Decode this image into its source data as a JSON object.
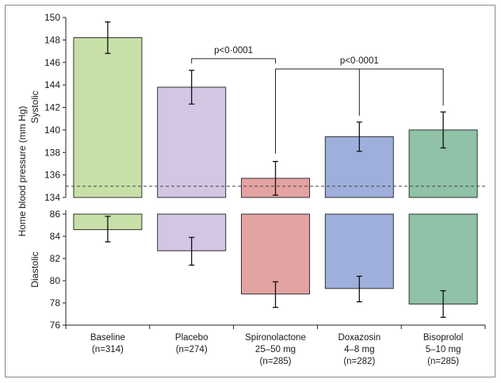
{
  "chart_data": {
    "type": "bar",
    "ylabel": "Home blood pressure (mm Hg)",
    "systolic_label": "Systolic",
    "diastolic_label": "Diastolic",
    "systolic_ylim": [
      134,
      150
    ],
    "diastolic_ylim": [
      76,
      86
    ],
    "systolic_ticks": [
      134,
      136,
      138,
      140,
      142,
      144,
      146,
      148,
      150
    ],
    "diastolic_ticks": [
      76,
      78,
      80,
      82,
      84,
      86
    ],
    "reference_line_systolic": 135,
    "categories": [
      {
        "name": "Baseline",
        "lines": [
          "Baseline",
          "(n=314)"
        ],
        "color": "#c7e0a8"
      },
      {
        "name": "Placebo",
        "lines": [
          "Placebo",
          "(n=274)"
        ],
        "color": "#d3c6e3"
      },
      {
        "name": "Spironolactone",
        "lines": [
          "Spironolactone",
          "25–50 mg",
          "(n=285)"
        ],
        "color": "#e3a3a3"
      },
      {
        "name": "Doxazosin",
        "lines": [
          "Doxazosin",
          "4–8 mg",
          "(n=282)"
        ],
        "color": "#9eafdb"
      },
      {
        "name": "Bisoprolol",
        "lines": [
          "Bisoprolol",
          "5–10 mg",
          "(n=285)"
        ],
        "color": "#8fc2a6"
      }
    ],
    "series": [
      {
        "name": "Systolic",
        "values": [
          148.2,
          143.8,
          135.7,
          139.4,
          140.0
        ],
        "err_low": [
          146.8,
          142.3,
          134.2,
          138.1,
          138.4
        ],
        "err_high": [
          149.6,
          145.3,
          137.2,
          140.7,
          141.6
        ]
      },
      {
        "name": "Diastolic",
        "values": [
          84.6,
          82.7,
          78.8,
          79.3,
          77.9
        ],
        "err_low": [
          83.5,
          81.4,
          77.6,
          78.1,
          76.7
        ],
        "err_high": [
          85.8,
          83.9,
          79.9,
          80.4,
          79.1
        ]
      }
    ],
    "annotations": [
      {
        "text": "p<0·0001",
        "from": 1,
        "to": [
          2
        ]
      },
      {
        "text": "p<0·0001",
        "from": 2,
        "to": [
          3,
          4
        ]
      }
    ]
  }
}
